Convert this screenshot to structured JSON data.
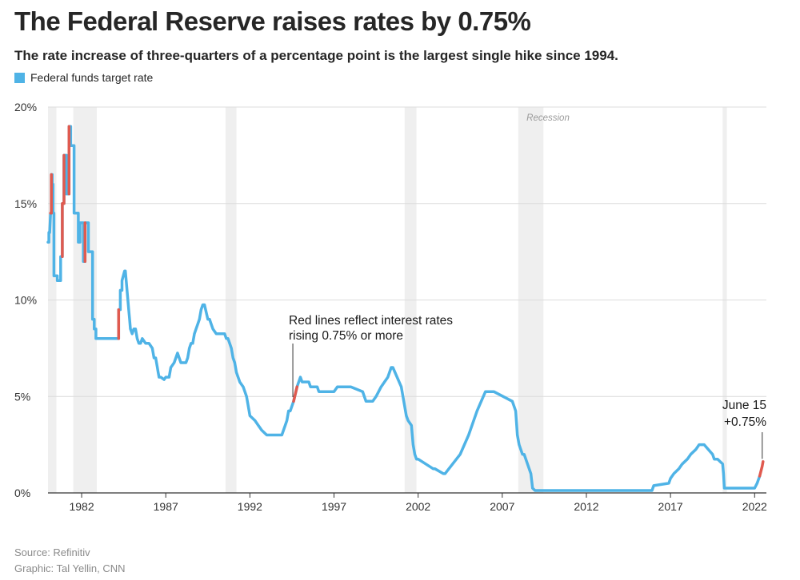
{
  "chart_data": {
    "type": "line",
    "title": "The Federal Reserve raises rates by 0.75%",
    "subtitle": "The rate increase of three-quarters of a percentage point is the largest single hike since 1994.",
    "legend": [
      {
        "name": "Federal funds target rate",
        "color": "#4fb3e6"
      }
    ],
    "recession_label": "Recession",
    "annotations": [
      {
        "lines": [
          "Red lines reflect interest rates",
          "rising 0.75% or more"
        ],
        "x": 1994.6,
        "y": 4.8
      },
      {
        "lines": [
          "June 15",
          "+0.75%"
        ],
        "x": 2022.5,
        "y": 1.6
      }
    ],
    "x_ticks": [
      1982,
      1987,
      1992,
      1997,
      2002,
      2007,
      2012,
      2017,
      2022
    ],
    "x_tick_labels": [
      "1982",
      "1987",
      "1992",
      "1997",
      "2002",
      "2007",
      "2012",
      "2017",
      "2022"
    ],
    "y_ticks": [
      0,
      5,
      10,
      15,
      20
    ],
    "y_tick_labels": [
      "0%",
      "5%",
      "10%",
      "15%",
      "20%"
    ],
    "xlim": [
      1980.0,
      2022.7
    ],
    "ylim": [
      0,
      20
    ],
    "grid": true,
    "recessions": [
      [
        1980.0,
        1980.5
      ],
      [
        1981.5,
        1982.9
      ],
      [
        1990.55,
        1991.2
      ],
      [
        2001.2,
        2001.9
      ],
      [
        2007.95,
        2009.45
      ],
      [
        2020.1,
        2020.35
      ]
    ],
    "series": [
      {
        "color": "#4fb3e6",
        "x": [
          1980.0,
          1980.05,
          1980.05,
          1980.1,
          1980.15,
          1980.2,
          1980.2,
          1980.25,
          1980.25,
          1980.3,
          1980.3,
          1980.35,
          1980.35,
          1980.4,
          1980.4,
          1980.55,
          1980.55,
          1980.75,
          1980.75,
          1980.85,
          1980.85,
          1980.95,
          1980.95,
          1981.1,
          1981.1,
          1981.25,
          1981.25,
          1981.35,
          1981.35,
          1981.5,
          1981.5,
          1981.55,
          1981.55,
          1981.8,
          1981.8,
          1981.9,
          1981.9,
          1982.0,
          1982.0,
          1982.1,
          1982.1,
          1982.2,
          1982.2,
          1982.4,
          1982.4,
          1982.5,
          1982.5,
          1982.65,
          1982.65,
          1982.75,
          1982.75,
          1982.85,
          1982.85,
          1982.95,
          1982.95,
          1984.2,
          1984.2,
          1984.3,
          1984.3,
          1984.4,
          1984.4,
          1984.55,
          1984.6,
          1984.7,
          1984.8,
          1984.85,
          1984.9,
          1985.0,
          1985.1,
          1985.2,
          1985.3,
          1985.4,
          1985.5,
          1985.6,
          1985.8,
          1985.9,
          1986.0,
          1986.2,
          1986.3,
          1986.4,
          1986.5,
          1986.55,
          1986.6,
          1986.7,
          1986.9,
          1987.0,
          1987.2,
          1987.3,
          1987.5,
          1987.6,
          1987.7,
          1987.8,
          1987.9,
          1988.0,
          1988.1,
          1988.2,
          1988.3,
          1988.4,
          1988.5,
          1988.6,
          1988.7,
          1988.8,
          1988.9,
          1989.0,
          1989.1,
          1989.2,
          1989.3,
          1989.5,
          1989.6,
          1989.7,
          1989.8,
          1990.0,
          1990.1,
          1990.5,
          1990.6,
          1990.7,
          1990.8,
          1990.9,
          1991.0,
          1991.1,
          1991.2,
          1991.4,
          1991.6,
          1991.8,
          1991.9,
          1992.0,
          1992.3,
          1992.5,
          1992.7,
          1993.0,
          1993.5,
          1993.9,
          1994.0,
          1994.1,
          1994.2,
          1994.3,
          1994.4,
          1994.6,
          1994.8,
          1995.0,
          1995.1,
          1995.5,
          1995.6,
          1996.0,
          1996.1,
          1997.0,
          1997.2,
          1998.0,
          1998.7,
          1998.8,
          1998.9,
          1999.3,
          1999.5,
          1999.8,
          2000.0,
          2000.2,
          2000.4,
          2000.5,
          2001.0,
          2001.1,
          2001.2,
          2001.3,
          2001.4,
          2001.6,
          2001.7,
          2001.8,
          2001.9,
          2002.0,
          2002.9,
          2003.0,
          2003.5,
          2003.6,
          2004.5,
          2005.0,
          2005.5,
          2006.0,
          2006.5,
          2007.6,
          2007.7,
          2007.8,
          2007.9,
          2008.0,
          2008.1,
          2008.2,
          2008.3,
          2008.7,
          2008.8,
          2008.95,
          2015.9,
          2016.0,
          2016.9,
          2017.0,
          2017.2,
          2017.5,
          2017.7,
          2018.0,
          2018.2,
          2018.5,
          2018.7,
          2019.0,
          2019.5,
          2019.6,
          2019.8,
          2020.1,
          2020.15,
          2020.2,
          2022.0,
          2022.15,
          2022.3
        ],
        "y": [
          13.0,
          13.0,
          13.5,
          13.5,
          14.5,
          14.5,
          16.5,
          16.5,
          16.0,
          16.0,
          14.5,
          14.5,
          11.25,
          11.25,
          11.25,
          11.25,
          11.0,
          11.0,
          12.25,
          12.25,
          15.0,
          15.0,
          17.5,
          17.5,
          15.5,
          15.5,
          19.0,
          19.0,
          18.0,
          18.0,
          18.0,
          18.0,
          14.5,
          14.5,
          13.0,
          13.0,
          14.0,
          14.0,
          14.0,
          14.0,
          12.0,
          12.0,
          14.0,
          14.0,
          12.5,
          12.5,
          12.5,
          12.5,
          9.0,
          9.0,
          8.5,
          8.5,
          8.0,
          8.0,
          8.0,
          8.0,
          9.5,
          9.5,
          10.5,
          10.5,
          11.0,
          11.5,
          11.5,
          10.5,
          9.5,
          9.0,
          8.5,
          8.25,
          8.5,
          8.5,
          8.0,
          7.75,
          7.75,
          8.0,
          7.75,
          7.75,
          7.75,
          7.5,
          7.0,
          7.0,
          6.5,
          6.25,
          6.0,
          6.0,
          5.875,
          6.0,
          6.0,
          6.5,
          6.75,
          7.0,
          7.25,
          7.0,
          6.75,
          6.75,
          6.75,
          6.75,
          7.0,
          7.5,
          7.75,
          7.75,
          8.25,
          8.5,
          8.75,
          9.0,
          9.5,
          9.75,
          9.75,
          9.0,
          9.0,
          8.75,
          8.5,
          8.25,
          8.25,
          8.25,
          8.0,
          8.0,
          7.75,
          7.5,
          7.0,
          6.75,
          6.25,
          5.75,
          5.5,
          5.0,
          4.5,
          4.0,
          3.75,
          3.5,
          3.25,
          3.0,
          3.0,
          3.0,
          3.25,
          3.5,
          3.75,
          4.25,
          4.25,
          4.75,
          5.5,
          6.0,
          5.75,
          5.75,
          5.5,
          5.5,
          5.25,
          5.25,
          5.5,
          5.5,
          5.25,
          5.0,
          4.75,
          4.75,
          5.0,
          5.5,
          5.75,
          6.0,
          6.5,
          6.5,
          5.5,
          5.0,
          4.5,
          4.0,
          3.75,
          3.5,
          2.5,
          2.0,
          1.75,
          1.75,
          1.25,
          1.25,
          1.0,
          1.0,
          2.0,
          3.0,
          4.25,
          5.25,
          5.25,
          4.75,
          4.5,
          4.25,
          3.0,
          2.5,
          2.25,
          2.0,
          2.0,
          1.0,
          0.25,
          0.125,
          0.125,
          0.375,
          0.5,
          0.75,
          1.0,
          1.25,
          1.5,
          1.75,
          2.0,
          2.25,
          2.5,
          2.5,
          2.0,
          1.75,
          1.75,
          1.5,
          1.0,
          0.25,
          0.25,
          0.5,
          0.875
        ]
      }
    ],
    "red_segments": [
      {
        "x": [
          1980.15,
          1980.2,
          1980.2
        ],
        "y": [
          14.5,
          14.5,
          16.5
        ]
      },
      {
        "x": [
          1980.85,
          1980.85,
          1980.95,
          1980.95
        ],
        "y": [
          12.25,
          15.0,
          15.0,
          17.5
        ]
      },
      {
        "x": [
          1981.25,
          1981.25
        ],
        "y": [
          15.5,
          19.0
        ]
      },
      {
        "x": [
          1982.2,
          1982.2
        ],
        "y": [
          12.0,
          14.0
        ]
      },
      {
        "x": [
          1984.2,
          1984.2
        ],
        "y": [
          8.0,
          9.5
        ]
      },
      {
        "x": [
          1994.6,
          1994.8
        ],
        "y": [
          4.75,
          5.5
        ]
      },
      {
        "x": [
          2022.3,
          2022.45,
          2022.5
        ],
        "y": [
          0.875,
          1.375,
          1.625
        ]
      }
    ],
    "source": "Source: Refinitiv",
    "credit": "Graphic: Tal Yellin, CNN"
  }
}
